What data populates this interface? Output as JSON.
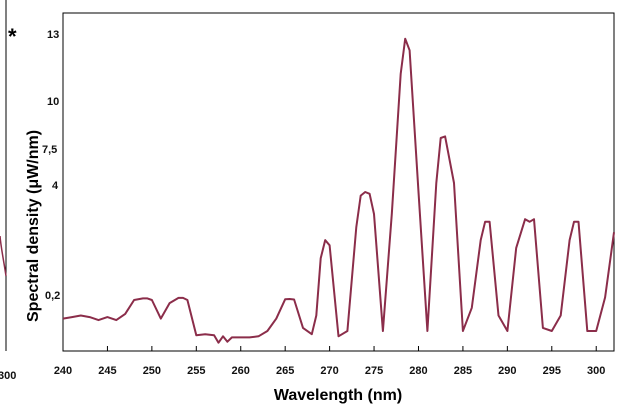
{
  "chart_data": {
    "type": "line",
    "title": "",
    "xlabel": "Wavelength (nm)",
    "ylabel": "Spectral density (μW/nm)",
    "ylabel_mark": "*",
    "left_edge_label": "300",
    "xlim": [
      240,
      302
    ],
    "y_tick_labels": [
      "0,2",
      "4",
      "7,5",
      "10",
      "13"
    ],
    "x_ticks": [
      240,
      245,
      250,
      255,
      260,
      265,
      270,
      275,
      280,
      285,
      290,
      295,
      300
    ],
    "line_color": "#8b2d4a",
    "series": [
      {
        "x": [
          240,
          241,
          242,
          243,
          244,
          245,
          246,
          247,
          248,
          249,
          249.5,
          250,
          251,
          252,
          253,
          253.5,
          254,
          255,
          256,
          257,
          257.5,
          258,
          258.5,
          259,
          260,
          261,
          262,
          263,
          264,
          265,
          265.5,
          266,
          267,
          268,
          268.5,
          269,
          269.5,
          270,
          271,
          272,
          273,
          273.5,
          274,
          274.5,
          275,
          276,
          277,
          278,
          278.5,
          279,
          280,
          281,
          282,
          282.5,
          283,
          284,
          285,
          286,
          287,
          287.5,
          288,
          289,
          290,
          291,
          292,
          292.5,
          293,
          294,
          295,
          296,
          297,
          297.5,
          298,
          299,
          300,
          301,
          302
        ],
        "y": [
          0.08,
          0.09,
          0.1,
          0.09,
          0.07,
          0.09,
          0.07,
          0.11,
          0.2,
          0.26,
          0.26,
          0.2,
          0.08,
          0.18,
          0.28,
          0.28,
          0.2,
          -0.04,
          -0.03,
          -0.04,
          -0.11,
          -0.05,
          -0.1,
          -0.06,
          -0.06,
          -0.06,
          -0.05,
          0.0,
          0.08,
          0.23,
          0.24,
          0.22,
          0.02,
          -0.03,
          0.1,
          1.8,
          2.5,
          2.3,
          -0.05,
          0.0,
          3.0,
          4.3,
          4.5,
          4.4,
          3.5,
          0.0,
          3.5,
          11.0,
          12.5,
          12.0,
          4.5,
          0.0,
          5.0,
          7.5,
          7.6,
          5.0,
          0.0,
          0.15,
          2.5,
          3.2,
          3.2,
          0.1,
          0.0,
          2.2,
          3.3,
          3.2,
          3.3,
          0.02,
          0.0,
          0.1,
          2.5,
          3.2,
          3.2,
          0.0,
          0.0,
          0.3,
          2.8
        ]
      }
    ]
  }
}
